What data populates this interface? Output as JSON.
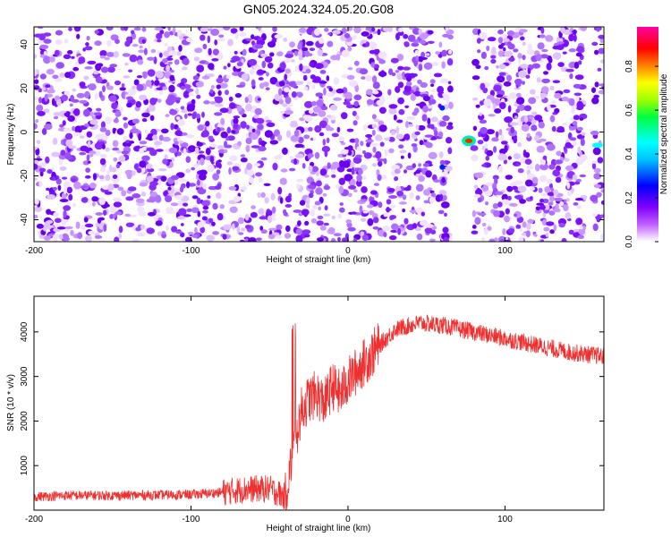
{
  "chart_data": [
    {
      "type": "heatmap",
      "title": "GN05.2024.324.05.20.G08",
      "xlabel": "Height of straight line (km)",
      "ylabel": "Frequency (Hz)",
      "xlim": [
        -200,
        163
      ],
      "ylim": [
        -50,
        48
      ],
      "x_ticks": [
        -200,
        -100,
        0,
        100
      ],
      "y_ticks": [
        -40,
        -20,
        0,
        20,
        40
      ],
      "colorbar": {
        "label": "Normalized spectral amplitude",
        "range": [
          0.0,
          0.98
        ],
        "ticks": [
          0.0,
          0.2,
          0.4,
          0.6,
          0.8
        ],
        "colormap": [
          "#ffffff",
          "#8000ff",
          "#0000ff",
          "#00ffff",
          "#00ff00",
          "#ffff00",
          "#ff8000",
          "#ff0000",
          "#ff00ff"
        ]
      },
      "gap": {
        "x_start": 63,
        "x_end": 85
      },
      "features": [
        {
          "x": 77,
          "freq": -4,
          "amplitude": 0.85
        },
        {
          "x": 60,
          "freq": 11,
          "amplitude": 0.25
        },
        {
          "x": 60,
          "freq": -16,
          "amplitude": 0.2
        },
        {
          "x": 159,
          "freq": -6,
          "amplitude": 0.4
        }
      ]
    },
    {
      "type": "line",
      "xlabel": "Height of straight line (km)",
      "ylabel": "SNR (10 * v/v)",
      "xlim": [
        -200,
        163
      ],
      "ylim": [
        0,
        4800
      ],
      "x_ticks": [
        -200,
        -100,
        0,
        100
      ],
      "y_ticks": [
        1000,
        2000,
        3000,
        4000
      ],
      "series": [
        {
          "color": "#ee3030",
          "x": [
            -200,
            -180,
            -150,
            -120,
            -100,
            -80,
            -65,
            -50,
            -40,
            -35,
            -30,
            -25,
            -20,
            -15,
            -10,
            -5,
            0,
            10,
            20,
            30,
            45,
            60,
            80,
            100,
            120,
            140,
            163
          ],
          "values": [
            300,
            330,
            330,
            340,
            350,
            400,
            470,
            480,
            300,
            1300,
            2200,
            2500,
            2600,
            2400,
            2800,
            2600,
            2900,
            3300,
            3700,
            4050,
            4200,
            4150,
            4000,
            3850,
            3700,
            3550,
            3450
          ]
        }
      ]
    }
  ]
}
